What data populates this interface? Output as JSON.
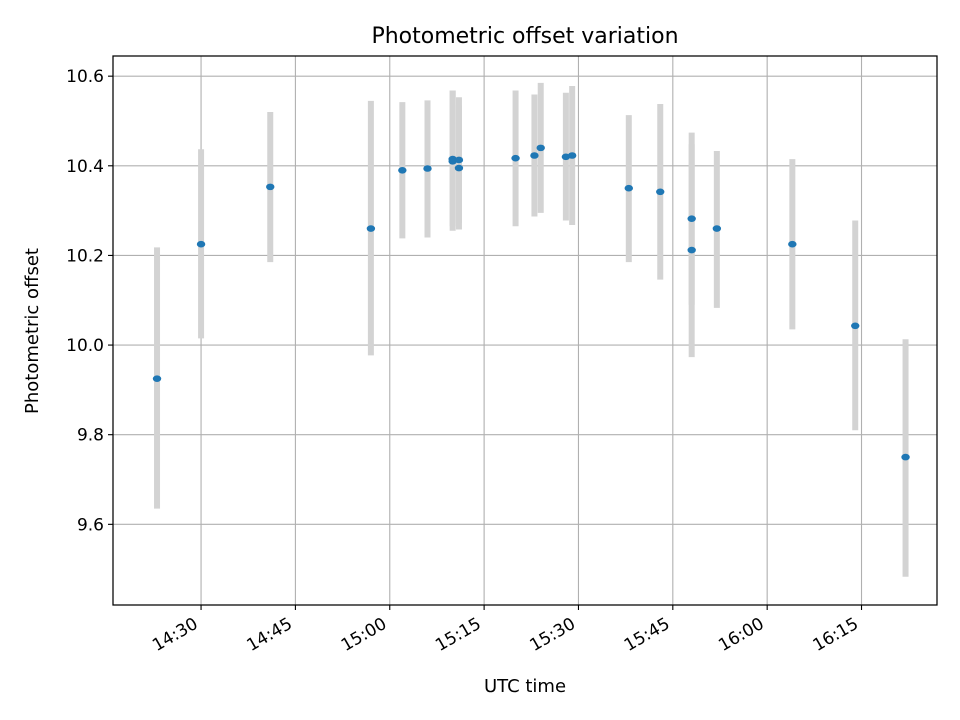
{
  "chart_data": {
    "type": "scatter",
    "title": "Photometric offset variation",
    "xlabel": "UTC time",
    "ylabel": "Photometric offset",
    "grid": true,
    "legend": "none",
    "xlim": [
      "14:16",
      "16:27"
    ],
    "ylim": [
      9.42,
      10.645
    ],
    "x_ticks": [
      "14:30",
      "14:45",
      "15:00",
      "15:15",
      "15:30",
      "15:45",
      "16:00",
      "16:15"
    ],
    "y_ticks": [
      "9.6",
      "9.8",
      "10.0",
      "10.2",
      "10.4",
      "10.6"
    ],
    "colors": {
      "point": "#1f77b4",
      "errorbar": "#d3d3d3",
      "grid": "#b0b0b0"
    },
    "points": [
      {
        "time": "14:23",
        "value": 9.925,
        "err_low": 9.635,
        "err_high": 10.218
      },
      {
        "time": "14:30",
        "value": 10.225,
        "err_low": 10.015,
        "err_high": 10.437
      },
      {
        "time": "14:41",
        "value": 10.353,
        "err_low": 10.185,
        "err_high": 10.52
      },
      {
        "time": "14:57",
        "value": 10.26,
        "err_low": 9.977,
        "err_high": 10.545
      },
      {
        "time": "15:02",
        "value": 10.39,
        "err_low": 10.238,
        "err_high": 10.542
      },
      {
        "time": "15:06",
        "value": 10.394,
        "err_low": 10.24,
        "err_high": 10.546
      },
      {
        "time": "15:10",
        "value": 10.415,
        "err_low": 10.265,
        "err_high": 10.568
      },
      {
        "time": "15:10",
        "value": 10.41,
        "err_low": 10.255,
        "err_high": 10.568
      },
      {
        "time": "15:11",
        "value": 10.395,
        "err_low": 10.258,
        "err_high": 10.535
      },
      {
        "time": "15:11",
        "value": 10.413,
        "err_low": 10.272,
        "err_high": 10.553
      },
      {
        "time": "15:20",
        "value": 10.417,
        "err_low": 10.265,
        "err_high": 10.568
      },
      {
        "time": "15:23",
        "value": 10.423,
        "err_low": 10.287,
        "err_high": 10.559
      },
      {
        "time": "15:24",
        "value": 10.44,
        "err_low": 10.295,
        "err_high": 10.585
      },
      {
        "time": "15:28",
        "value": 10.42,
        "err_low": 10.278,
        "err_high": 10.563
      },
      {
        "time": "15:29",
        "value": 10.423,
        "err_low": 10.268,
        "err_high": 10.578
      },
      {
        "time": "15:38",
        "value": 10.35,
        "err_low": 10.185,
        "err_high": 10.513
      },
      {
        "time": "15:43",
        "value": 10.342,
        "err_low": 10.146,
        "err_high": 10.538
      },
      {
        "time": "15:48",
        "value": 10.282,
        "err_low": 10.09,
        "err_high": 10.474
      },
      {
        "time": "15:48",
        "value": 10.212,
        "err_low": 9.973,
        "err_high": 10.448
      },
      {
        "time": "15:52",
        "value": 10.26,
        "err_low": 10.083,
        "err_high": 10.433
      },
      {
        "time": "16:04",
        "value": 10.225,
        "err_low": 10.035,
        "err_high": 10.415
      },
      {
        "time": "16:14",
        "value": 10.043,
        "err_low": 9.81,
        "err_high": 10.278
      },
      {
        "time": "16:22",
        "value": 9.75,
        "err_low": 9.483,
        "err_high": 10.013
      }
    ]
  }
}
